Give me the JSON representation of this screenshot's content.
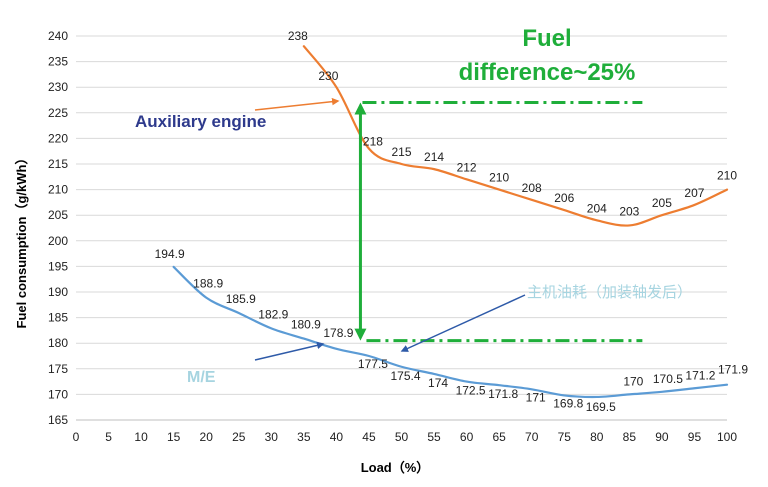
{
  "chart_data": {
    "type": "line",
    "title": "",
    "xlabel": "Load（%）",
    "ylabel": "Fuel consumption（g/kWh）",
    "xlim": [
      0,
      100
    ],
    "ylim": [
      165,
      240
    ],
    "x_ticks": [
      "0",
      "5",
      "10",
      "15",
      "20",
      "25",
      "30",
      "35",
      "40",
      "45",
      "50",
      "55",
      "60",
      "65",
      "70",
      "75",
      "80",
      "85",
      "90",
      "95",
      "100"
    ],
    "y_ticks": [
      "165",
      "170",
      "175",
      "180",
      "185",
      "190",
      "195",
      "200",
      "205",
      "210",
      "215",
      "220",
      "225",
      "230",
      "235",
      "240"
    ],
    "grid": "horizontal",
    "series": [
      {
        "name": "Auxiliary engine",
        "color": "#ed7d31",
        "x": [
          35,
          40,
          45,
          50,
          55,
          60,
          65,
          70,
          75,
          80,
          85,
          90,
          95,
          100
        ],
        "values": [
          238,
          230,
          218,
          215,
          214,
          212,
          210,
          208,
          206,
          204,
          203,
          205,
          207,
          210
        ],
        "labels": [
          "238",
          "230",
          "218",
          "215",
          "214",
          "212",
          "210",
          "208",
          "206",
          "204",
          "203",
          "205",
          "207",
          "210"
        ]
      },
      {
        "name": "M/E",
        "color": "#5b9bd5",
        "x": [
          15,
          20,
          25,
          30,
          35,
          40,
          45,
          50,
          55,
          60,
          65,
          70,
          75,
          80,
          85,
          90,
          95,
          100
        ],
        "values": [
          194.9,
          188.9,
          185.9,
          182.9,
          180.9,
          178.9,
          177.5,
          175.4,
          174,
          172.5,
          171.8,
          171,
          169.8,
          169.5,
          170,
          170.5,
          171.2,
          171.9
        ],
        "labels": [
          "194.9",
          "188.9",
          "185.9",
          "182.9",
          "180.9",
          "178.9",
          "177.5",
          "175.4",
          "174",
          "172.5",
          "171.8",
          "171",
          "169.8",
          "169.5",
          "170",
          "170.5",
          "171.2",
          "171.9"
        ]
      }
    ],
    "annotations": {
      "fuel_line1": "Fuel",
      "fuel_line2": "difference~25%",
      "auxiliary_label": "Auxiliary engine",
      "chinese_label": "主机油耗（加装轴发后）",
      "me_label": "M/E",
      "top_reference_value": 227,
      "bottom_reference_value": 180.5,
      "reference_x_range": [
        44,
        87
      ],
      "difference_arrow_x": 44,
      "green_color": "#1fae3a",
      "arrow_navy": "#2e5aa8"
    }
  }
}
